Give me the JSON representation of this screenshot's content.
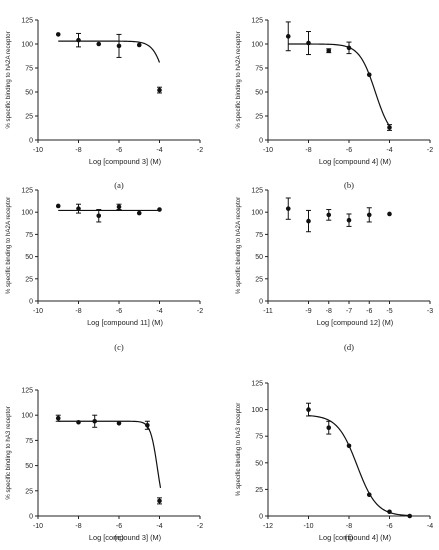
{
  "chart_data": [
    {
      "type": "scatter",
      "panel_label": "(a)",
      "xlabel": "Log [compound 3] (M)",
      "ylabel": "% specific binding to hA2A receptor",
      "xlim": [
        -10,
        -2
      ],
      "ylim": [
        0,
        125
      ],
      "xticks": [
        -10,
        -8,
        -6,
        -4,
        -2
      ],
      "yticks": [
        0,
        25,
        50,
        75,
        100,
        125
      ],
      "points": [
        {
          "x": -9,
          "y": 110,
          "err": 0
        },
        {
          "x": -8,
          "y": 104,
          "err": 7
        },
        {
          "x": -7,
          "y": 100,
          "err": 0
        },
        {
          "x": -6,
          "y": 98,
          "err": 12
        },
        {
          "x": -5,
          "y": 99,
          "err": 0
        },
        {
          "x": -4,
          "y": 52,
          "err": 3
        }
      ],
      "fit": {
        "top": 103,
        "bottom": 0,
        "logEC50": -3.6,
        "hill": 1.4,
        "from": -9,
        "to": -4
      }
    },
    {
      "type": "scatter",
      "panel_label": "(b)",
      "xlabel": "Log [compound 4] (M)",
      "ylabel": "% specific binding to hA2A receptor",
      "xlim": [
        -10,
        -2
      ],
      "ylim": [
        0,
        125
      ],
      "xticks": [
        -10,
        -8,
        -6,
        -4,
        -2
      ],
      "yticks": [
        0,
        25,
        50,
        75,
        100,
        125
      ],
      "points": [
        {
          "x": -9,
          "y": 108,
          "err": 15
        },
        {
          "x": -8,
          "y": 101,
          "err": 12
        },
        {
          "x": -7,
          "y": 93,
          "err": 2
        },
        {
          "x": -6,
          "y": 96,
          "err": 6
        },
        {
          "x": -5,
          "y": 68,
          "err": 0
        },
        {
          "x": -4,
          "y": 13,
          "err": 3
        }
      ],
      "fit": {
        "top": 100,
        "bottom": 0,
        "logEC50": -4.7,
        "hill": 1.1,
        "from": -9,
        "to": -4
      }
    },
    {
      "type": "scatter",
      "panel_label": "(c)",
      "xlabel": "Log [compound 11] (M)",
      "ylabel": "% specific binding to hA2A receptor",
      "xlim": [
        -10,
        -2
      ],
      "ylim": [
        0,
        125
      ],
      "xticks": [
        -10,
        -8,
        -6,
        -4,
        -2
      ],
      "yticks": [
        0,
        25,
        50,
        75,
        100,
        125
      ],
      "points": [
        {
          "x": -9,
          "y": 107,
          "err": 0
        },
        {
          "x": -8,
          "y": 104,
          "err": 5
        },
        {
          "x": -7,
          "y": 96,
          "err": 7
        },
        {
          "x": -6,
          "y": 106,
          "err": 3
        },
        {
          "x": -5,
          "y": 99,
          "err": 0
        },
        {
          "x": -4,
          "y": 103,
          "err": 0
        }
      ],
      "fit": {
        "top": 102,
        "bottom": 102,
        "logEC50": -6,
        "hill": 1,
        "from": -9,
        "to": -4
      }
    },
    {
      "type": "scatter",
      "panel_label": "(d)",
      "xlabel": "Log [compound 12] (M)",
      "ylabel": "% specific binding to hA2A receptor",
      "xlim": [
        -11,
        -3
      ],
      "ylim": [
        0,
        125
      ],
      "xticks": [
        -11,
        -9,
        -8,
        -7,
        -6,
        -5,
        -3
      ],
      "yticks": [
        0,
        25,
        50,
        75,
        100,
        125
      ],
      "points": [
        {
          "x": -10,
          "y": 104,
          "err": 12
        },
        {
          "x": -9,
          "y": 90,
          "err": 12
        },
        {
          "x": -8,
          "y": 97,
          "err": 6
        },
        {
          "x": -7,
          "y": 91,
          "err": 7
        },
        {
          "x": -6,
          "y": 97,
          "err": 8
        },
        {
          "x": -5,
          "y": 98,
          "err": 0
        }
      ]
    },
    {
      "type": "scatter",
      "panel_label": "(e)",
      "xlabel": "Log [compound 3] (M)",
      "ylabel": "% specific binding to hA3 receptor",
      "xlim": [
        -10,
        -2
      ],
      "ylim": [
        0,
        125
      ],
      "xticks": [
        -10,
        -8,
        -6,
        -4,
        -2
      ],
      "yticks": [
        0,
        25,
        50,
        75,
        100,
        125
      ],
      "points": [
        {
          "x": -9,
          "y": 97,
          "err": 3
        },
        {
          "x": -8,
          "y": 93,
          "err": 0
        },
        {
          "x": -7.2,
          "y": 94,
          "err": 6
        },
        {
          "x": -6,
          "y": 92,
          "err": 0
        },
        {
          "x": -4.6,
          "y": 90,
          "err": 4
        },
        {
          "x": -4,
          "y": 15,
          "err": 3
        }
      ],
      "fit": {
        "top": 94,
        "bottom": 0,
        "logEC50": -4.1,
        "hill": 2.5,
        "from": -9,
        "to": -3.95
      }
    },
    {
      "type": "scatter",
      "panel_label": "(f)",
      "xlabel": "Log [compound 4] (M)",
      "ylabel": "% specific binding to hA3 receptor",
      "xlim": [
        -12,
        -4
      ],
      "ylim": [
        0,
        125
      ],
      "xticks": [
        -12,
        -10,
        -8,
        -6,
        -4
      ],
      "yticks": [
        0,
        25,
        50,
        75,
        100,
        125
      ],
      "points": [
        {
          "x": -10,
          "y": 100,
          "err": 6
        },
        {
          "x": -9,
          "y": 83,
          "err": 6
        },
        {
          "x": -8,
          "y": 66,
          "err": 0
        },
        {
          "x": -7,
          "y": 20,
          "err": 0
        },
        {
          "x": -6,
          "y": 4,
          "err": 0
        },
        {
          "x": -5,
          "y": 0,
          "err": 0
        }
      ],
      "fit": {
        "top": 95,
        "bottom": 0,
        "logEC50": -7.6,
        "hill": 0.9,
        "from": -10,
        "to": -5
      }
    }
  ]
}
